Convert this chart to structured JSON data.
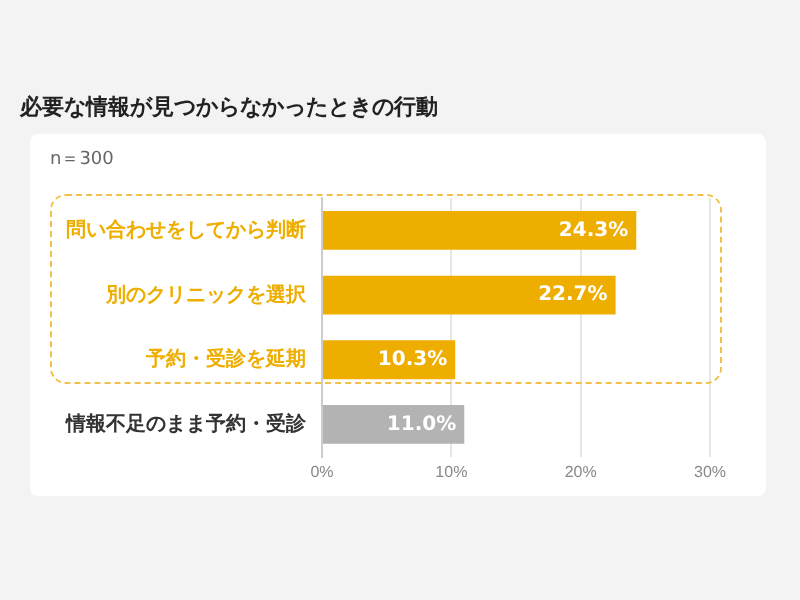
{
  "chart_data": {
    "type": "bar",
    "orientation": "horizontal",
    "title": "必要な情報が見つからなかったときの行動",
    "annotations": [
      "n＝300"
    ],
    "categories": [
      "問い合わせをしてから判断",
      "別のクリニックを選択",
      "予約・受診を延期",
      "情報不足のまま予約・受診"
    ],
    "values": [
      24.3,
      22.7,
      10.3,
      11.0
    ],
    "value_labels": [
      "24.3%",
      "22.7%",
      "10.3%",
      "11.0%"
    ],
    "colors": [
      "#eeae00",
      "#eeae00",
      "#eeae00",
      "#b3b3b3"
    ],
    "xlim": [
      0,
      30
    ],
    "xticks": [
      {
        "value": 0,
        "label": "0%"
      },
      {
        "value": 10,
        "label": "10%"
      },
      {
        "value": 20,
        "label": "20%"
      },
      {
        "value": 30,
        "label": "30%"
      }
    ],
    "grid": "x",
    "legend": false
  }
}
